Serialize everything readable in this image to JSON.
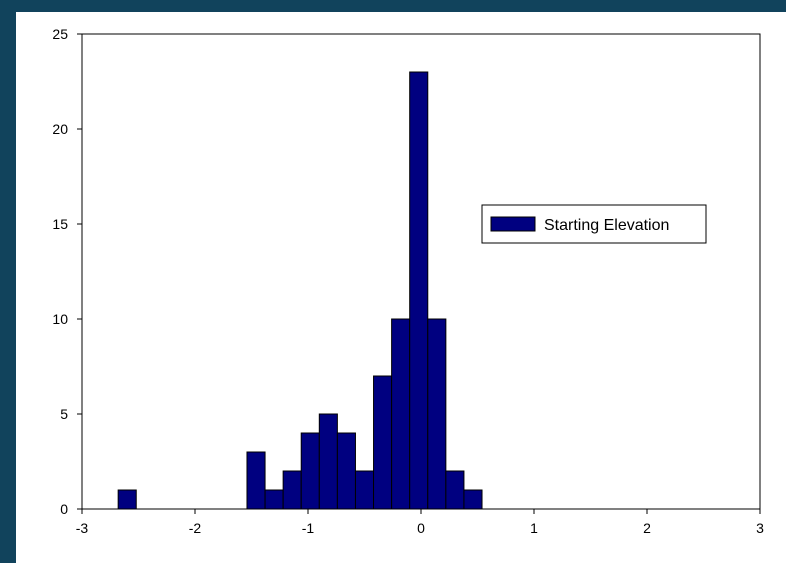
{
  "colors": {
    "frame": "#11435c",
    "plot_background": "#ffffff",
    "bar_fill": "#000080",
    "bar_stroke": "#000000",
    "axis": "#000000"
  },
  "chart_data": {
    "type": "bar",
    "title": "",
    "xlabel": "",
    "ylabel": "",
    "xlim": [
      -3,
      3
    ],
    "ylim": [
      0,
      25
    ],
    "x_ticks": [
      -3,
      -2,
      -1,
      0,
      1,
      2,
      3
    ],
    "y_ticks": [
      0,
      5,
      10,
      15,
      20,
      25
    ],
    "grid": false,
    "legend_position": "right",
    "bin_width": 0.16,
    "series": [
      {
        "name": "Starting Elevation",
        "bins": [
          {
            "x": -2.6,
            "y": 1
          },
          {
            "x": -1.46,
            "y": 3
          },
          {
            "x": -1.3,
            "y": 1
          },
          {
            "x": -1.14,
            "y": 2
          },
          {
            "x": -0.98,
            "y": 4
          },
          {
            "x": -0.82,
            "y": 5
          },
          {
            "x": -0.66,
            "y": 4
          },
          {
            "x": -0.5,
            "y": 2
          },
          {
            "x": -0.34,
            "y": 7
          },
          {
            "x": -0.18,
            "y": 10
          },
          {
            "x": -0.02,
            "y": 23
          },
          {
            "x": 0.14,
            "y": 10
          },
          {
            "x": 0.3,
            "y": 2
          },
          {
            "x": 0.46,
            "y": 1
          }
        ]
      }
    ]
  }
}
